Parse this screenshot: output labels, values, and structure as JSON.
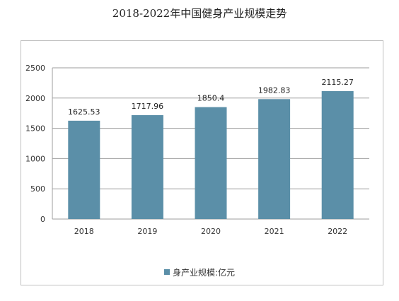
{
  "chart_data": {
    "type": "bar",
    "title": "2018-2022年中国健身产业规模走势",
    "categories": [
      "2018",
      "2019",
      "2020",
      "2021",
      "2022"
    ],
    "series": [
      {
        "name": "身产业规模:亿元",
        "values": [
          1625.53,
          1717.96,
          1850.4,
          1982.83,
          2115.27
        ],
        "color": "#5b8fa8"
      }
    ],
    "data_labels": [
      "1625.53",
      "1717.96",
      "1850.4",
      "1982.83",
      "2115.27"
    ],
    "y_ticks": [
      0,
      500,
      1000,
      1500,
      2000,
      2500
    ],
    "ylim": [
      0,
      2500
    ],
    "grid": true,
    "legend_position": "bottom"
  }
}
